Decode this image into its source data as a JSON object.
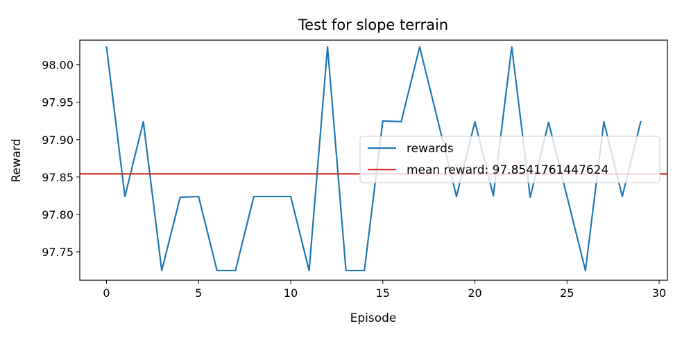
{
  "chart_data": {
    "type": "line",
    "title": "Test for slope terrain",
    "xlabel": "Episode",
    "ylabel": "Reward",
    "xlim": [
      -1.45,
      30.45
    ],
    "ylim": [
      97.712,
      98.033
    ],
    "xticks": [
      0,
      5,
      10,
      15,
      20,
      25,
      30
    ],
    "xtick_labels": [
      "0",
      "5",
      "10",
      "15",
      "20",
      "25",
      "30"
    ],
    "yticks": [
      97.75,
      97.8,
      97.85,
      97.9,
      97.95,
      98.0
    ],
    "ytick_labels": [
      "97.75",
      "97.80",
      "97.85",
      "97.90",
      "97.95",
      "98.00"
    ],
    "grid": false,
    "legend_position": "center-right",
    "series": [
      {
        "name": "rewards",
        "color": "#1f77b4",
        "x": [
          0,
          1,
          2,
          3,
          4,
          5,
          6,
          7,
          8,
          9,
          10,
          11,
          12,
          13,
          14,
          15,
          16,
          17,
          18,
          19,
          20,
          21,
          22,
          23,
          24,
          25,
          26,
          27,
          28,
          29
        ],
        "values": [
          98.024,
          97.824,
          97.924,
          97.725,
          97.823,
          97.824,
          97.725,
          97.725,
          97.824,
          97.824,
          97.824,
          97.725,
          98.024,
          97.725,
          97.725,
          97.925,
          97.924,
          98.024,
          97.924,
          97.824,
          97.924,
          97.825,
          98.024,
          97.823,
          97.923,
          97.824,
          97.725,
          97.924,
          97.824,
          97.924
        ]
      }
    ],
    "hlines": [
      {
        "name": "mean reward: 97.8541761447624",
        "color": "#d62728",
        "value": 97.8541761447624
      }
    ]
  }
}
